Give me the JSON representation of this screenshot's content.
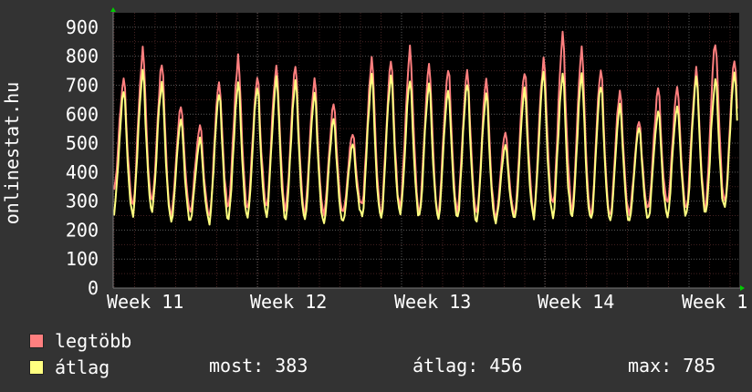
{
  "chart_data": {
    "type": "line",
    "ylabel": "onlinestat.hu",
    "ylim": [
      0,
      950
    ],
    "yticks": [
      0,
      100,
      200,
      300,
      400,
      500,
      600,
      700,
      800,
      900
    ],
    "x_tick_labels": [
      "Week 11",
      "Week 12",
      "Week 13",
      "Week 14",
      "Week 1"
    ],
    "grid": true,
    "colors": {
      "background": "#333333",
      "plot_background": "#000000",
      "grid_major": "#5a5a5a",
      "grid_minor": "#442222",
      "axis_arrow": "#00cc00",
      "series_max": "#ff7f7f",
      "series_avg": "#ffff80"
    },
    "series": [
      {
        "name": "legtöbb",
        "color": "#ff7f7f",
        "peak_values": [
          730,
          830,
          780,
          640,
          570,
          720,
          800,
          740,
          770,
          770,
          720,
          640,
          540,
          800,
          800,
          830,
          770,
          770,
          760,
          720,
          540,
          760,
          790,
          880,
          830,
          760,
          690,
          580,
          690,
          700,
          760,
          860,
          790
        ],
        "trough_values": [
          330,
          290,
          300,
          250,
          260,
          250,
          280,
          280,
          290,
          280,
          260,
          250,
          260,
          280,
          260,
          280,
          270,
          260,
          270,
          260,
          250,
          260,
          270,
          280,
          280,
          260,
          250,
          260,
          270,
          290,
          280,
          280,
          300
        ]
      },
      {
        "name": "átlag",
        "color": "#ffff80",
        "peak_values": [
          690,
          760,
          720,
          590,
          520,
          680,
          720,
          700,
          740,
          720,
          680,
          590,
          500,
          740,
          740,
          730,
          720,
          700,
          720,
          680,
          500,
          700,
          750,
          740,
          740,
          710,
          640,
          560,
          620,
          640,
          740,
          730,
          740
        ],
        "trough_values": [
          260,
          255,
          265,
          230,
          235,
          230,
          240,
          240,
          250,
          240,
          230,
          225,
          230,
          250,
          235,
          250,
          245,
          235,
          245,
          235,
          225,
          235,
          245,
          245,
          240,
          230,
          225,
          230,
          240,
          250,
          250,
          250,
          270
        ]
      }
    ],
    "legend": {
      "items": [
        {
          "label": "legtöbb",
          "color": "#ff7f7f"
        },
        {
          "label": "átlag",
          "color": "#ffff80"
        }
      ],
      "stats": {
        "most": "most: 383",
        "atlag": "átlag: 456",
        "max": "max: 785"
      }
    }
  }
}
